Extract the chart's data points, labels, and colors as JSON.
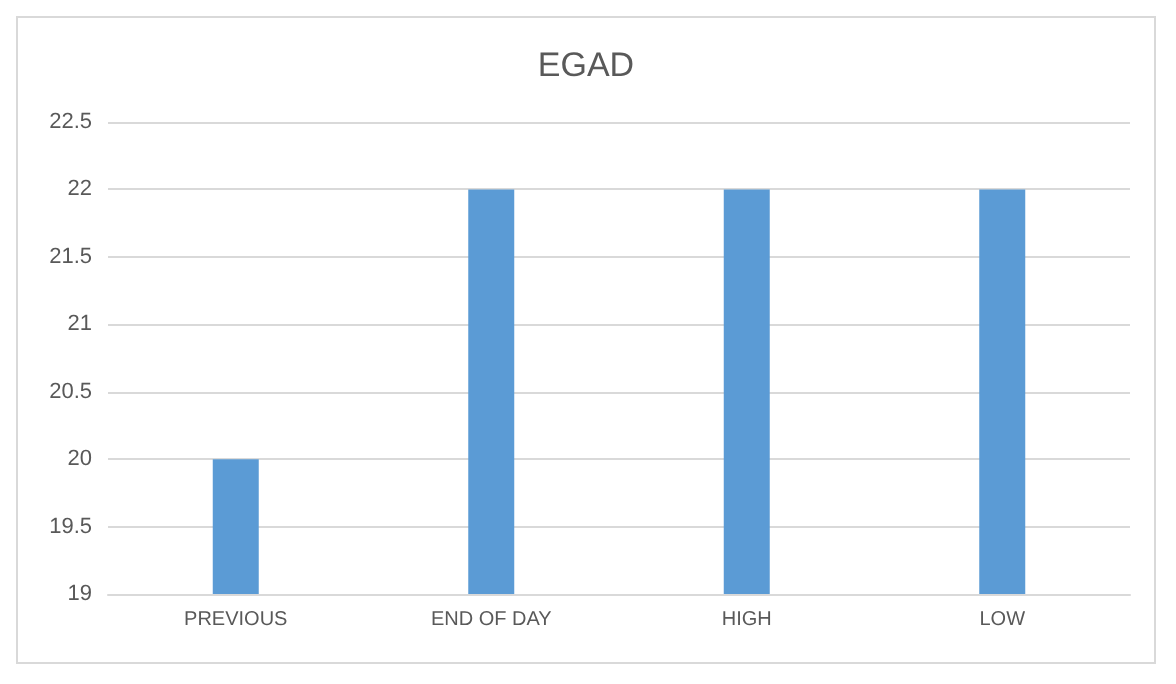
{
  "chart_data": {
    "type": "bar",
    "title": "EGAD",
    "categories": [
      "PREVIOUS",
      "END OF DAY",
      "HIGH",
      "LOW"
    ],
    "values": [
      20,
      22,
      22,
      22
    ],
    "color": "#5b9bd5",
    "ylim": [
      19,
      22.5
    ],
    "yticks": [
      19,
      19.5,
      20,
      20.5,
      21,
      21.5,
      22,
      22.5
    ],
    "grid": "y"
  }
}
